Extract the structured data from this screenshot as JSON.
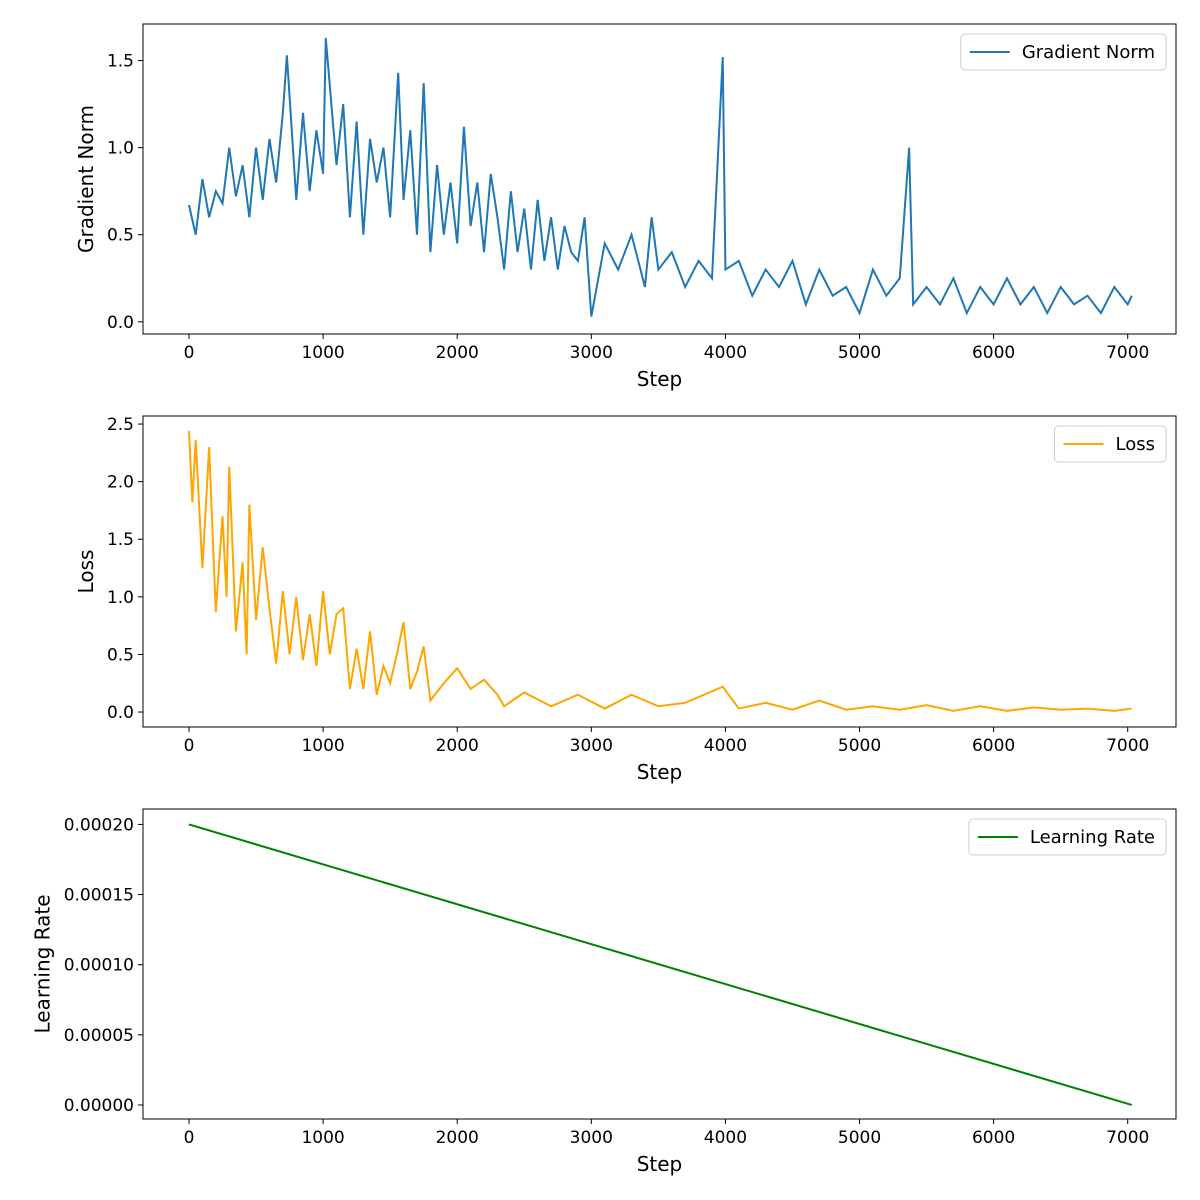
{
  "chart_data": [
    {
      "type": "line",
      "xlabel": "Step",
      "ylabel": "Gradient Norm",
      "legend": "upper right",
      "xlim": [
        -343,
        7360
      ],
      "xticks": [
        0,
        1000,
        2000,
        3000,
        4000,
        5000,
        6000,
        7000
      ],
      "ylim": [
        -0.07,
        1.71
      ],
      "yticks": [
        {
          "value": 0,
          "label": "0.0"
        },
        0.5,
        {
          "value": 1,
          "label": "1.0"
        },
        1.5
      ],
      "series": [
        {
          "name": "Gradient Norm",
          "color": "#1f77b4",
          "x": [
            0,
            50,
            100,
            150,
            200,
            250,
            300,
            350,
            400,
            450,
            500,
            550,
            600,
            650,
            700,
            730,
            800,
            850,
            900,
            950,
            1000,
            1020,
            1100,
            1150,
            1200,
            1250,
            1300,
            1350,
            1400,
            1450,
            1500,
            1560,
            1600,
            1650,
            1700,
            1750,
            1800,
            1850,
            1900,
            1950,
            2000,
            2050,
            2100,
            2150,
            2200,
            2250,
            2300,
            2350,
            2400,
            2450,
            2500,
            2550,
            2600,
            2650,
            2700,
            2750,
            2800,
            2850,
            2900,
            2950,
            3000,
            3100,
            3200,
            3300,
            3400,
            3450,
            3500,
            3600,
            3700,
            3800,
            3900,
            3980,
            4000,
            4100,
            4200,
            4300,
            4400,
            4500,
            4600,
            4700,
            4800,
            4900,
            5000,
            5100,
            5200,
            5300,
            5370,
            5400,
            5500,
            5600,
            5700,
            5800,
            5900,
            6000,
            6100,
            6200,
            6300,
            6400,
            6500,
            6600,
            6700,
            6800,
            6900,
            7000,
            7030
          ],
          "values": [
            0.67,
            0.5,
            0.82,
            0.6,
            0.75,
            0.68,
            1.0,
            0.72,
            0.9,
            0.6,
            1.0,
            0.7,
            1.05,
            0.8,
            1.2,
            1.53,
            0.7,
            1.2,
            0.75,
            1.1,
            0.85,
            1.63,
            0.9,
            1.25,
            0.6,
            1.15,
            0.5,
            1.05,
            0.8,
            1.0,
            0.6,
            1.43,
            0.7,
            1.1,
            0.5,
            1.37,
            0.4,
            0.9,
            0.5,
            0.8,
            0.45,
            1.12,
            0.55,
            0.8,
            0.4,
            0.85,
            0.6,
            0.3,
            0.75,
            0.4,
            0.65,
            0.3,
            0.7,
            0.35,
            0.6,
            0.3,
            0.55,
            0.4,
            0.35,
            0.6,
            0.03,
            0.45,
            0.3,
            0.5,
            0.2,
            0.6,
            0.3,
            0.4,
            0.2,
            0.35,
            0.25,
            1.52,
            0.3,
            0.35,
            0.15,
            0.3,
            0.2,
            0.35,
            0.1,
            0.3,
            0.15,
            0.2,
            0.05,
            0.3,
            0.15,
            0.25,
            1.0,
            0.1,
            0.2,
            0.1,
            0.25,
            0.05,
            0.2,
            0.1,
            0.25,
            0.1,
            0.2,
            0.05,
            0.2,
            0.1,
            0.15,
            0.05,
            0.2,
            0.1,
            0.15
          ]
        }
      ]
    },
    {
      "type": "line",
      "xlabel": "Step",
      "ylabel": "Loss",
      "legend": "upper right",
      "xlim": [
        -343,
        7360
      ],
      "xticks": [
        0,
        1000,
        2000,
        3000,
        4000,
        5000,
        6000,
        7000
      ],
      "ylim": [
        -0.13,
        2.57
      ],
      "yticks": [
        {
          "value": 0,
          "label": "0.0"
        },
        0.5,
        {
          "value": 1,
          "label": "1.0"
        },
        1.5,
        {
          "value": 2,
          "label": "2.0"
        },
        2.5
      ],
      "series": [
        {
          "name": "Loss",
          "color": "#ffa500",
          "x": [
            0,
            25,
            50,
            100,
            150,
            200,
            250,
            280,
            300,
            350,
            400,
            430,
            450,
            500,
            550,
            600,
            650,
            700,
            750,
            800,
            850,
            900,
            950,
            1000,
            1050,
            1100,
            1150,
            1200,
            1250,
            1300,
            1350,
            1400,
            1450,
            1500,
            1550,
            1600,
            1650,
            1700,
            1750,
            1800,
            1900,
            2000,
            2100,
            2200,
            2300,
            2350,
            2500,
            2700,
            2900,
            3100,
            3300,
            3500,
            3700,
            3980,
            4100,
            4300,
            4500,
            4700,
            4900,
            5100,
            5300,
            5500,
            5700,
            5900,
            6100,
            6300,
            6500,
            6700,
            6900,
            7030
          ],
          "values": [
            2.44,
            1.82,
            2.36,
            1.25,
            2.3,
            0.87,
            1.7,
            1.0,
            2.13,
            0.7,
            1.3,
            0.5,
            1.8,
            0.8,
            1.43,
            0.9,
            0.42,
            1.05,
            0.5,
            1.0,
            0.45,
            0.85,
            0.4,
            1.05,
            0.5,
            0.85,
            0.9,
            0.2,
            0.55,
            0.2,
            0.7,
            0.15,
            0.4,
            0.25,
            0.5,
            0.78,
            0.2,
            0.35,
            0.57,
            0.1,
            0.25,
            0.38,
            0.2,
            0.28,
            0.15,
            0.05,
            0.17,
            0.05,
            0.15,
            0.03,
            0.15,
            0.05,
            0.08,
            0.22,
            0.03,
            0.08,
            0.02,
            0.1,
            0.02,
            0.05,
            0.02,
            0.06,
            0.01,
            0.05,
            0.01,
            0.04,
            0.02,
            0.03,
            0.01,
            0.03
          ]
        }
      ]
    },
    {
      "type": "line",
      "xlabel": "Step",
      "ylabel": "Learning Rate",
      "legend": "upper right",
      "xlim": [
        -343,
        7360
      ],
      "xticks": [
        0,
        1000,
        2000,
        3000,
        4000,
        5000,
        6000,
        7000
      ],
      "ylim": [
        -1e-05,
        0.000211
      ],
      "yticks": [
        {
          "value": 0,
          "label": "0.00000"
        },
        {
          "value": 5e-05,
          "label": "0.00005"
        },
        {
          "value": 0.0001,
          "label": "0.00010"
        },
        {
          "value": 0.00015,
          "label": "0.00015"
        },
        {
          "value": 0.0002,
          "label": "0.00020"
        }
      ],
      "series": [
        {
          "name": "Learning Rate",
          "color": "#008000",
          "x": [
            0,
            7030
          ],
          "values": [
            0.0002,
            0
          ]
        }
      ]
    }
  ]
}
